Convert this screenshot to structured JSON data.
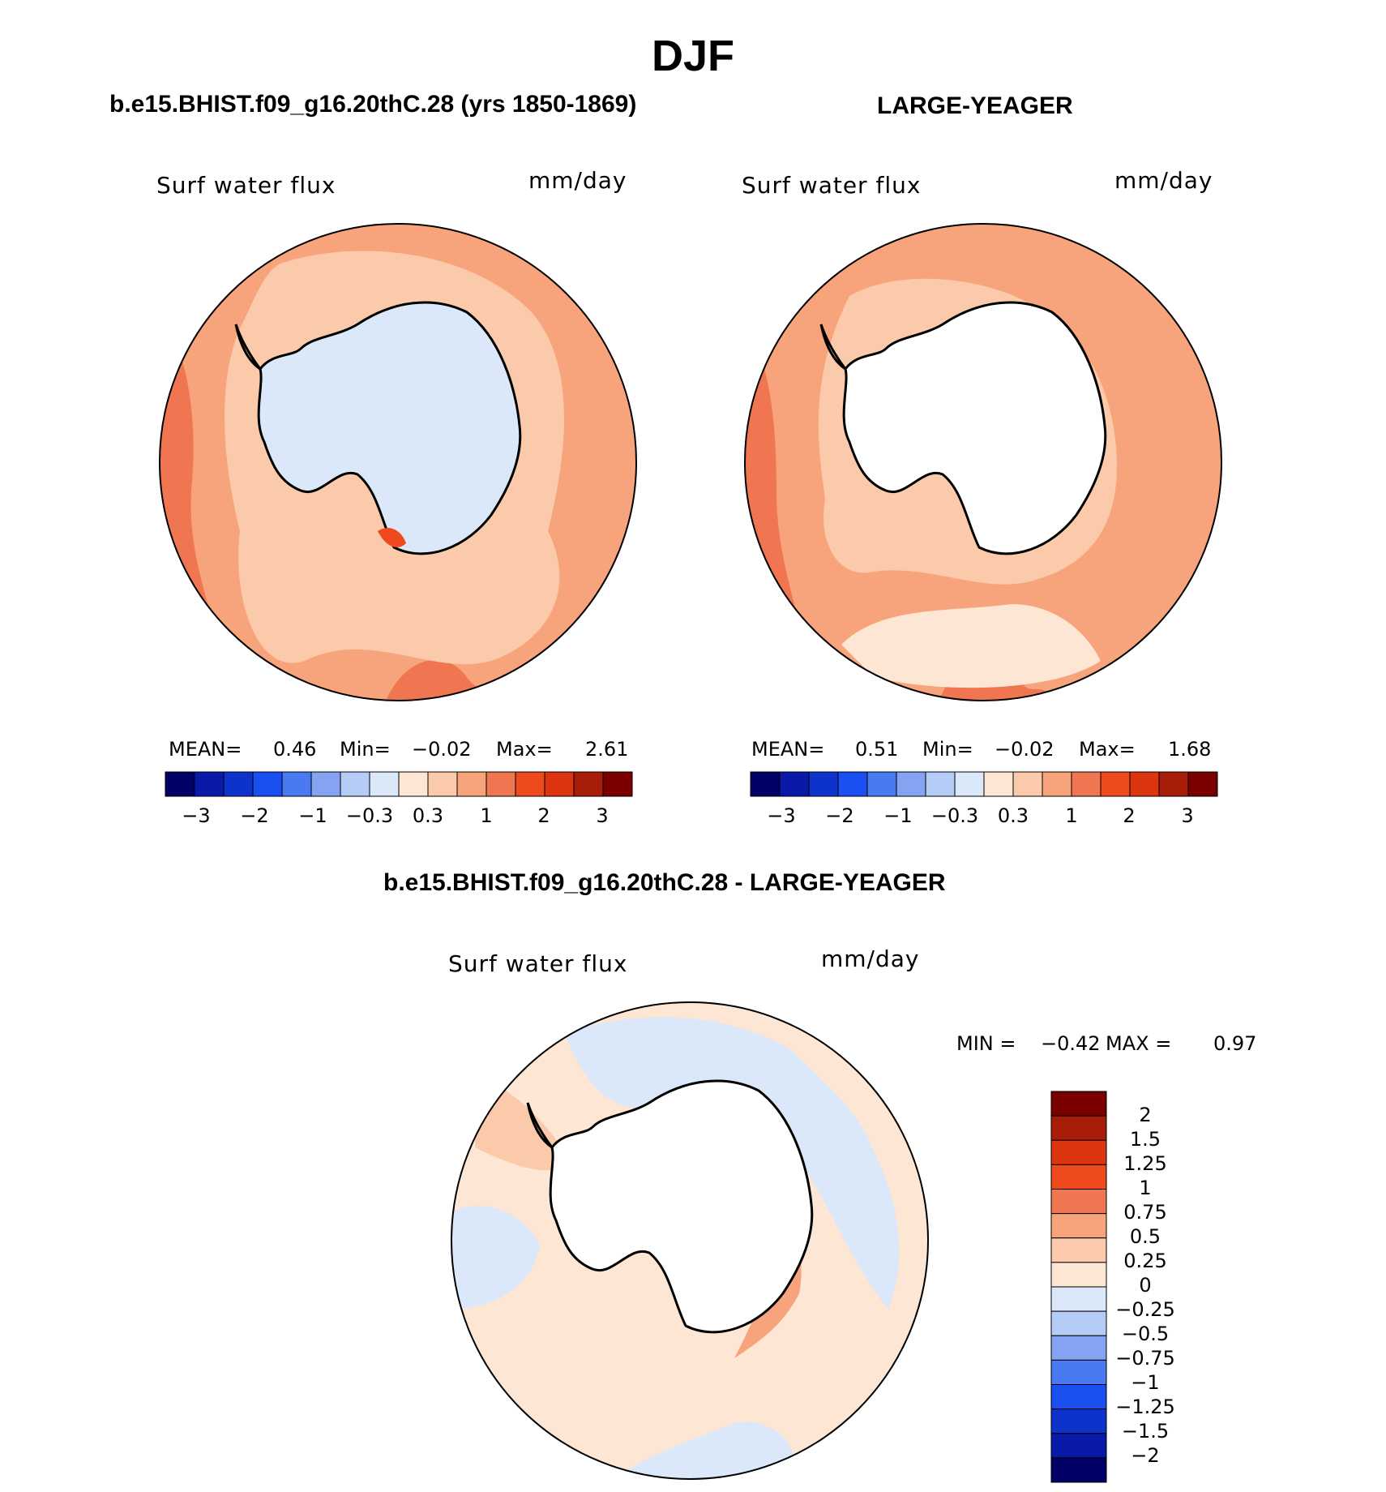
{
  "figure": {
    "title": "DJF",
    "colors": {
      "hbar": [
        "#000066",
        "#0a1aa8",
        "#0d33cc",
        "#1a4ff2",
        "#4a7af2",
        "#84a4f2",
        "#b4ccf6",
        "#dae8fa",
        "#fde6d3",
        "#fbcaaa",
        "#f7a47c",
        "#f07652",
        "#ef4a1e",
        "#dc3510",
        "#a81c0a",
        "#7a0000"
      ],
      "vbar": [
        "#7a0000",
        "#a81c0a",
        "#dc3510",
        "#ef4a1e",
        "#f07652",
        "#f7a47c",
        "#fbcaaa",
        "#fde6d3",
        "#dae8fa",
        "#b4ccf6",
        "#84a4f2",
        "#4a7af2",
        "#1a4ff2",
        "#0d33cc",
        "#0a1aa8",
        "#000066"
      ]
    }
  },
  "panels": [
    {
      "title": "b.e15.BHIST.f09_g16.20thC.28 (yrs 1850-1869)",
      "variable": "Surf  water  flux",
      "units": "mm/day",
      "stats": {
        "mean_label": "MEAN=",
        "mean": "0.46",
        "min_label": "Min=",
        "min": "−0.02",
        "max_label": "Max=",
        "max": "2.61"
      },
      "colorbar_ticks": [
        "−3",
        "−2",
        "−1",
        "−0.3",
        "0.3",
        "1",
        "2",
        "3"
      ]
    },
    {
      "title": "LARGE-YEAGER",
      "variable": "Surf  water  flux",
      "units": "mm/day",
      "stats": {
        "mean_label": "MEAN=",
        "mean": "0.51",
        "min_label": "Min=",
        "min": "−0.02",
        "max_label": "Max=",
        "max": "1.68"
      },
      "colorbar_ticks": [
        "−3",
        "−2",
        "−1",
        "−0.3",
        "0.3",
        "1",
        "2",
        "3"
      ]
    },
    {
      "title": "b.e15.BHIST.f09_g16.20thC.28 - LARGE-YEAGER",
      "variable": "Surf  water  flux",
      "units": "mm/day",
      "stats": {
        "min_label": "MIN =",
        "min": "−0.42",
        "max_label": "MAX =",
        "max": "0.97"
      },
      "colorbar_ticks": [
        "2",
        "1.5",
        "1.25",
        "1",
        "0.75",
        "0.5",
        "0.25",
        "0",
        "−0.25",
        "−0.5",
        "−0.75",
        "−1",
        "−1.25",
        "−1.5",
        "−2"
      ]
    }
  ]
}
